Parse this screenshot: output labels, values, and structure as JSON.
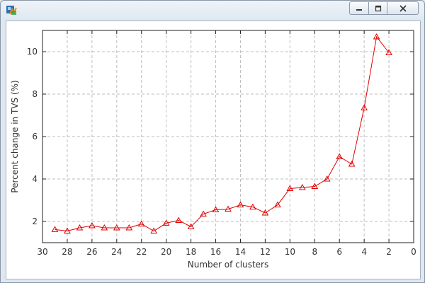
{
  "window": {
    "title": "",
    "icon": "matlab-figure-icon",
    "controls": [
      "minimize-icon",
      "maximize-icon",
      "close-icon"
    ]
  },
  "chart_data": {
    "type": "line",
    "title": "",
    "xlabel": "Number of clusters",
    "ylabel": "Percent change in TVS (%)",
    "xlim": [
      30,
      0
    ],
    "ylim": [
      1,
      11
    ],
    "x_reversed": true,
    "xticks": [
      30,
      28,
      26,
      24,
      22,
      20,
      18,
      16,
      14,
      12,
      10,
      8,
      6,
      4,
      2,
      0
    ],
    "yticks": [
      2,
      4,
      6,
      8,
      10
    ],
    "grid": true,
    "marker": "triangle",
    "color": "#e00000",
    "series": [
      {
        "x": [
          29,
          28,
          27,
          26,
          25,
          24,
          23,
          22,
          21,
          20,
          19,
          18,
          17,
          16,
          15,
          14,
          13,
          12,
          11,
          10,
          9,
          8,
          7,
          6,
          5,
          4,
          3,
          2
        ],
        "values": [
          1.62,
          1.55,
          1.7,
          1.8,
          1.7,
          1.7,
          1.7,
          1.88,
          1.55,
          1.92,
          2.05,
          1.75,
          2.35,
          2.55,
          2.58,
          2.78,
          2.68,
          2.4,
          2.78,
          3.55,
          3.6,
          3.65,
          4.0,
          5.05,
          4.7,
          7.35,
          10.7,
          9.95
        ]
      }
    ]
  }
}
